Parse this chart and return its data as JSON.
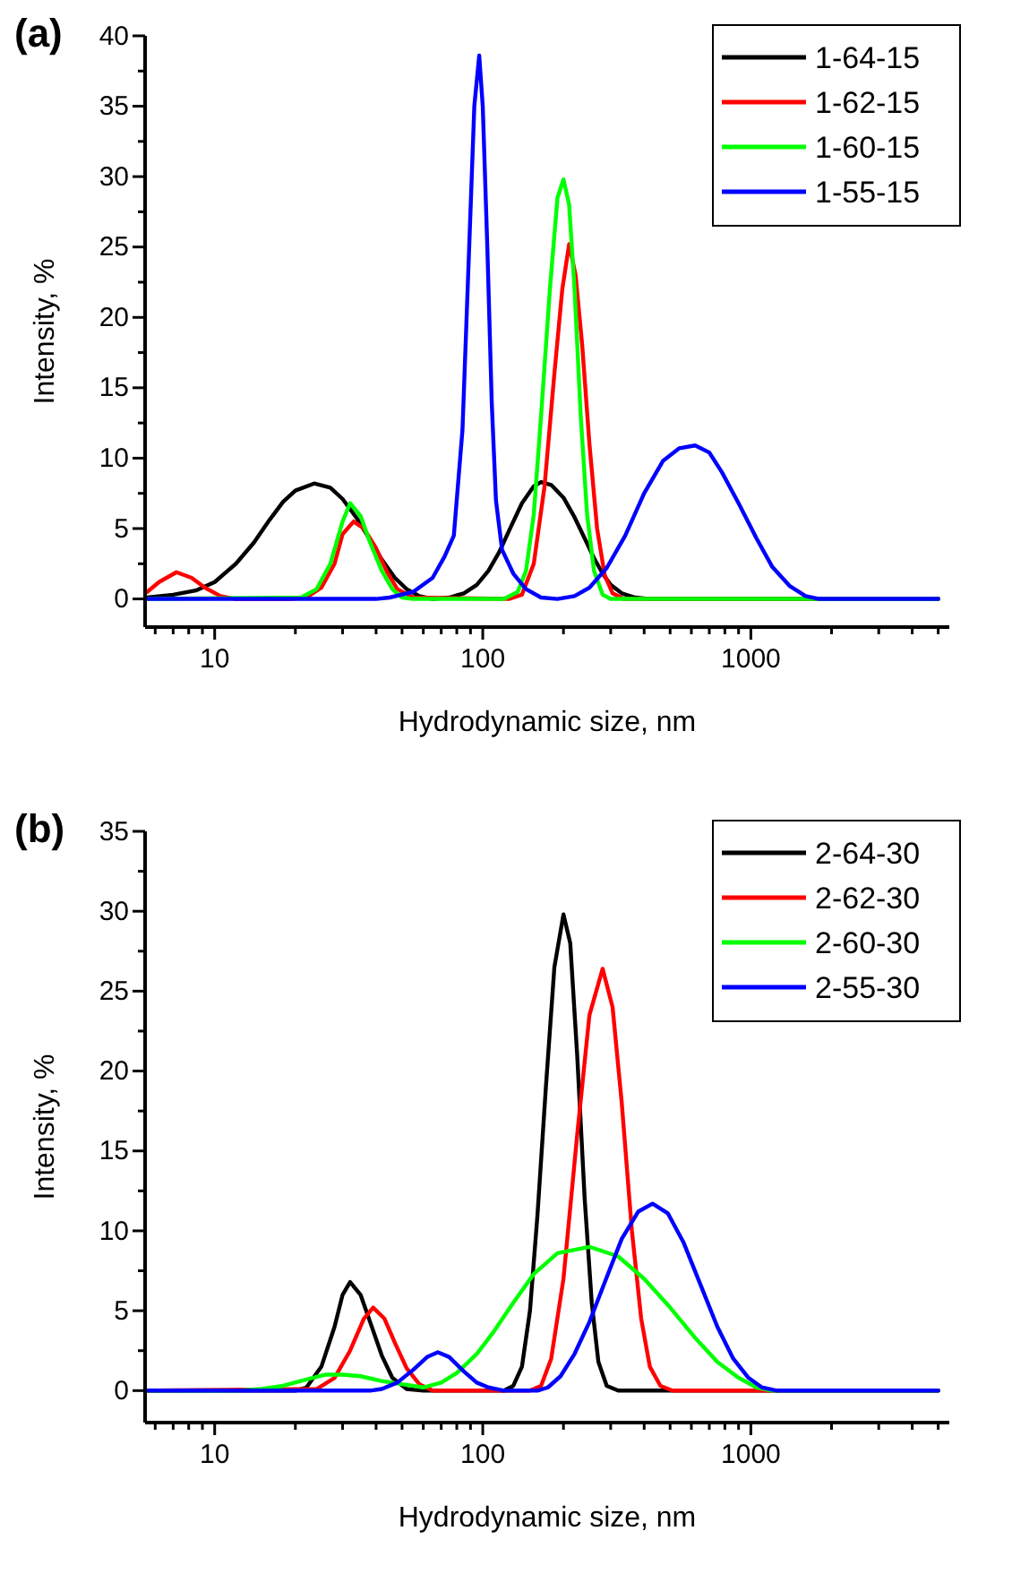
{
  "chart_data": [
    {
      "type": "line",
      "title": "(a)",
      "xlabel": "Hydrodynamic size, nm",
      "ylabel": "Intensity, %",
      "log": "x",
      "legend": "top right",
      "xlim": [
        5.5,
        5500
      ],
      "ylim": [
        -2,
        40
      ],
      "xticks": [
        {
          "value": 6,
          "label": null
        },
        {
          "value": 7,
          "label": null
        },
        {
          "value": 8,
          "label": null
        },
        {
          "value": 9,
          "label": null
        },
        10,
        {
          "value": 20,
          "label": null
        },
        {
          "value": 30,
          "label": null
        },
        {
          "value": 40,
          "label": null
        },
        {
          "value": 50,
          "label": null
        },
        {
          "value": 60,
          "label": null
        },
        {
          "value": 70,
          "label": null
        },
        {
          "value": 80,
          "label": null
        },
        {
          "value": 90,
          "label": null
        },
        100,
        {
          "value": 200,
          "label": null
        },
        {
          "value": 300,
          "label": null
        },
        {
          "value": 400,
          "label": null
        },
        {
          "value": 500,
          "label": null
        },
        {
          "value": 600,
          "label": null
        },
        {
          "value": 700,
          "label": null
        },
        {
          "value": 800,
          "label": null
        },
        {
          "value": 900,
          "label": null
        },
        1000,
        {
          "value": 2000,
          "label": null
        },
        {
          "value": 3000,
          "label": null
        },
        {
          "value": 4000,
          "label": null
        },
        {
          "value": 5000,
          "label": null
        }
      ],
      "yticks": [
        0,
        {
          "value": 2.5,
          "label": null
        },
        5,
        {
          "value": 7.5,
          "label": null
        },
        10,
        {
          "value": 12.5,
          "label": null
        },
        15,
        {
          "value": 17.5,
          "label": null
        },
        20,
        {
          "value": 22.5,
          "label": null
        },
        25,
        {
          "value": 27.5,
          "label": null
        },
        30,
        {
          "value": 32.5,
          "label": null
        },
        35,
        {
          "value": 37.5,
          "label": null
        },
        40
      ],
      "series": [
        {
          "name": "1-64-15",
          "color": "#000000",
          "x": [
            5.6,
            7,
            8.5,
            10,
            12,
            14,
            16,
            18,
            20,
            23.5,
            27,
            30,
            34,
            38,
            42,
            47,
            52,
            58,
            65,
            75,
            85,
            95,
            105,
            115,
            125,
            140,
            155,
            165,
            180,
            200,
            220,
            240,
            260,
            280,
            300,
            330,
            370,
            420,
            5000
          ],
          "values": [
            0.1,
            0.3,
            0.6,
            1.2,
            2.5,
            4,
            5.6,
            6.9,
            7.7,
            8.2,
            7.9,
            7.1,
            5.7,
            4.2,
            2.8,
            1.5,
            0.7,
            0.2,
            0,
            0.1,
            0.4,
            1,
            2,
            3.3,
            4.8,
            6.8,
            8,
            8.3,
            8.1,
            7.2,
            5.8,
            4.3,
            2.9,
            1.8,
            1,
            0.4,
            0.1,
            0,
            0
          ]
        },
        {
          "name": "1-62-15",
          "color": "#ff0000",
          "x": [
            5.6,
            6.2,
            7.2,
            8.2,
            9.2,
            10.5,
            12,
            19,
            22,
            25,
            28,
            30,
            33,
            36,
            40,
            44,
            48,
            55,
            125,
            140,
            155,
            170,
            185,
            198,
            210,
            222,
            235,
            250,
            267,
            285,
            305,
            335,
            5000
          ],
          "values": [
            0.5,
            1.2,
            1.9,
            1.5,
            0.8,
            0.2,
            0,
            0,
            0.1,
            0.8,
            2.5,
            4.6,
            5.5,
            5,
            3.6,
            1.9,
            0.7,
            0.1,
            0,
            0.3,
            2.5,
            8,
            16,
            22,
            25.2,
            23,
            18,
            11,
            5,
            1.7,
            0.4,
            0,
            0
          ]
        },
        {
          "name": "1-60-15",
          "color": "#00ff00",
          "x": [
            5.6,
            21,
            24,
            27,
            30,
            32,
            35,
            38,
            42,
            46,
            50,
            55,
            120,
            135,
            145,
            155,
            165,
            178,
            190,
            200,
            210,
            220,
            232,
            245,
            260,
            280,
            300,
            5000
          ],
          "values": [
            0,
            0.1,
            0.7,
            2.5,
            5.5,
            6.8,
            5.9,
            4,
            2,
            0.7,
            0.1,
            0,
            0,
            0.5,
            2,
            6,
            13,
            22,
            28.5,
            29.8,
            28,
            22,
            13,
            6,
            2,
            0.3,
            0,
            0
          ]
        },
        {
          "name": "1-55-15",
          "color": "#0000ff",
          "x": [
            5.6,
            40,
            45,
            55,
            65,
            72,
            78,
            84,
            89,
            93,
            97,
            100,
            104,
            108,
            112,
            118,
            130,
            145,
            165,
            190,
            220,
            250,
            290,
            340,
            400,
            470,
            540,
            620,
            700,
            780,
            900,
            1050,
            1200,
            1400,
            1600,
            1800,
            5000
          ],
          "values": [
            0,
            0,
            0.1,
            0.5,
            1.5,
            3,
            4.5,
            12,
            25,
            35,
            38.6,
            35,
            25,
            14,
            7,
            3.5,
            1.8,
            0.7,
            0.1,
            0,
            0.2,
            0.8,
            2.2,
            4.5,
            7.5,
            9.8,
            10.7,
            10.9,
            10.4,
            9,
            6.8,
            4.3,
            2.3,
            0.9,
            0.2,
            0,
            0
          ]
        }
      ]
    },
    {
      "type": "line",
      "title": "(b)",
      "xlabel": "Hydrodynamic size, nm",
      "ylabel": "Intensity, %",
      "log": "x",
      "legend": "top right",
      "xlim": [
        5.5,
        5500
      ],
      "ylim": [
        -2,
        35
      ],
      "xticks": [
        {
          "value": 6,
          "label": null
        },
        {
          "value": 7,
          "label": null
        },
        {
          "value": 8,
          "label": null
        },
        {
          "value": 9,
          "label": null
        },
        10,
        {
          "value": 20,
          "label": null
        },
        {
          "value": 30,
          "label": null
        },
        {
          "value": 40,
          "label": null
        },
        {
          "value": 50,
          "label": null
        },
        {
          "value": 60,
          "label": null
        },
        {
          "value": 70,
          "label": null
        },
        {
          "value": 80,
          "label": null
        },
        {
          "value": 90,
          "label": null
        },
        100,
        {
          "value": 200,
          "label": null
        },
        {
          "value": 300,
          "label": null
        },
        {
          "value": 400,
          "label": null
        },
        {
          "value": 500,
          "label": null
        },
        {
          "value": 600,
          "label": null
        },
        {
          "value": 700,
          "label": null
        },
        {
          "value": 800,
          "label": null
        },
        {
          "value": 900,
          "label": null
        },
        1000,
        {
          "value": 2000,
          "label": null
        },
        {
          "value": 3000,
          "label": null
        },
        {
          "value": 4000,
          "label": null
        },
        {
          "value": 5000,
          "label": null
        }
      ],
      "yticks": [
        0,
        {
          "value": 2.5,
          "label": null
        },
        5,
        {
          "value": 7.5,
          "label": null
        },
        10,
        {
          "value": 12.5,
          "label": null
        },
        15,
        {
          "value": 17.5,
          "label": null
        },
        20,
        {
          "value": 22.5,
          "label": null
        },
        25,
        {
          "value": 27.5,
          "label": null
        },
        30,
        {
          "value": 32.5,
          "label": null
        },
        35
      ],
      "series": [
        {
          "name": "2-64-30",
          "color": "#000000",
          "x": [
            5.6,
            20,
            22,
            25,
            28,
            30,
            32,
            35,
            38,
            42,
            46,
            52,
            60,
            120,
            130,
            140,
            150,
            160,
            172,
            185,
            200,
            212,
            225,
            240,
            255,
            270,
            290,
            320,
            5000
          ],
          "values": [
            0,
            0,
            0.2,
            1.5,
            4,
            6,
            6.8,
            6,
            4.3,
            2.2,
            0.8,
            0.1,
            0,
            0,
            0.3,
            1.5,
            5,
            11,
            19,
            26.5,
            29.8,
            28,
            21,
            12,
            5.5,
            1.8,
            0.3,
            0,
            0
          ]
        },
        {
          "name": "2-62-30",
          "color": "#ff0000",
          "x": [
            5.6,
            24,
            28,
            32,
            36,
            39,
            43,
            47,
            52,
            58,
            65,
            150,
            165,
            180,
            200,
            225,
            250,
            280,
            305,
            330,
            360,
            390,
            420,
            460,
            510,
            5000
          ],
          "values": [
            0,
            0.1,
            0.8,
            2.5,
            4.5,
            5.2,
            4.5,
            3,
            1.4,
            0.4,
            0,
            0,
            0.3,
            2,
            7,
            16,
            23.5,
            26.4,
            24,
            18,
            10,
            4.5,
            1.5,
            0.3,
            0,
            0
          ]
        },
        {
          "name": "2-60-30",
          "color": "#00ff00",
          "x": [
            5.6,
            12,
            15,
            18,
            22,
            26,
            30,
            35,
            42,
            50,
            60,
            70,
            80,
            95,
            110,
            130,
            155,
            190,
            250,
            320,
            400,
            500,
            620,
            750,
            900,
            1050,
            1200,
            1400,
            5000
          ],
          "values": [
            0,
            0,
            0.1,
            0.3,
            0.7,
            1,
            1,
            0.9,
            0.6,
            0.4,
            0.2,
            0.5,
            1.1,
            2.3,
            3.7,
            5.5,
            7.3,
            8.6,
            9,
            8.4,
            7,
            5.2,
            3.3,
            1.8,
            0.8,
            0.2,
            0,
            0,
            0
          ]
        },
        {
          "name": "2-55-30",
          "color": "#0000ff",
          "x": [
            5.6,
            38,
            42,
            48,
            55,
            62,
            68,
            75,
            85,
            95,
            105,
            120,
            160,
            175,
            195,
            220,
            250,
            290,
            330,
            380,
            430,
            490,
            560,
            650,
            750,
            860,
            980,
            1100,
            1250,
            1400,
            5000
          ],
          "values": [
            0,
            0,
            0.1,
            0.5,
            1.3,
            2.1,
            2.4,
            2.1,
            1.2,
            0.5,
            0.2,
            0,
            0,
            0.2,
            0.9,
            2.3,
            4.3,
            7.1,
            9.5,
            11.2,
            11.7,
            11.1,
            9.3,
            6.6,
            4,
            2,
            0.8,
            0.2,
            0,
            0,
            0
          ]
        }
      ]
    }
  ]
}
